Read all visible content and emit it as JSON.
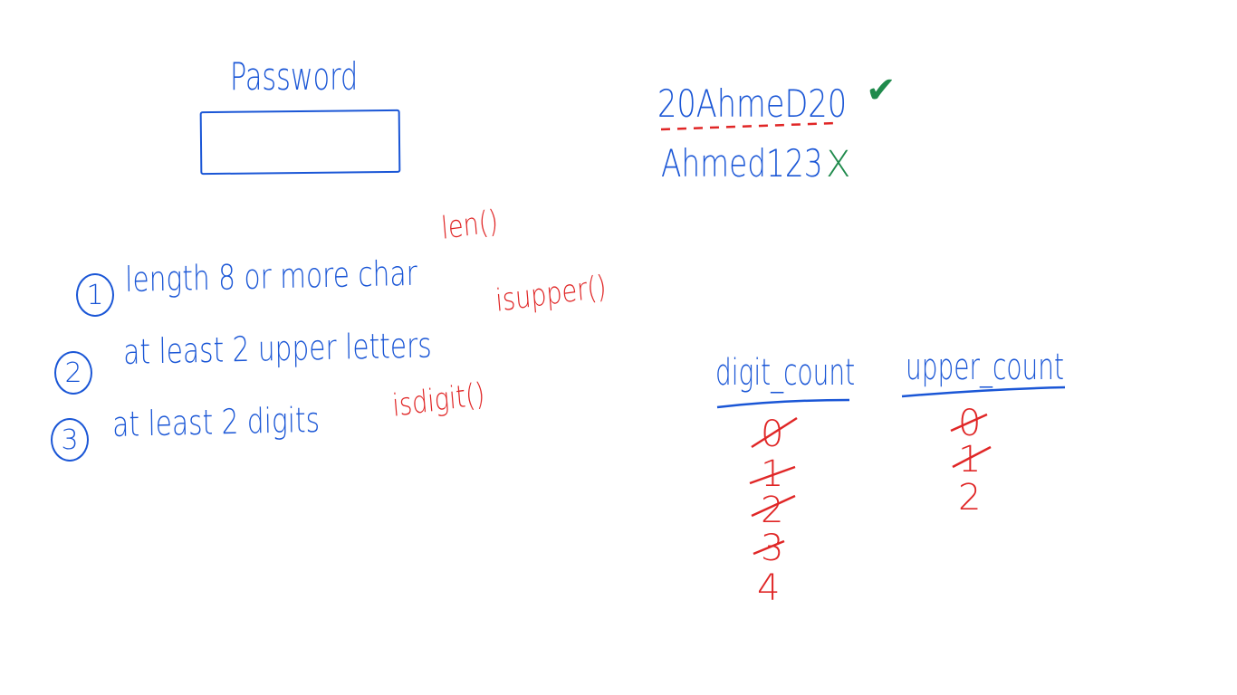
{
  "form": {
    "label": "Password",
    "input_value": ""
  },
  "rules": [
    {
      "number": "1",
      "text": "length 8 or more char"
    },
    {
      "number": "2",
      "text": "at least 2 upper letters"
    },
    {
      "number": "3",
      "text": "at least 2 digits"
    }
  ],
  "functions": {
    "length": "len()",
    "upper": "isupper()",
    "digit": "isdigit()"
  },
  "examples": [
    {
      "password": "20AhmeD20",
      "mark": "✔",
      "mark_color": "#1f8a4c"
    },
    {
      "password": "Ahmed123",
      "mark": "X",
      "mark_color": "#1f8a4c"
    }
  ],
  "counters": {
    "digit": {
      "header": "digit_count",
      "values": [
        "0",
        "1",
        "2",
        "3",
        "4"
      ]
    },
    "upper": {
      "header": "upper_count",
      "values": [
        "0",
        "1",
        "2"
      ]
    }
  },
  "colors": {
    "ink_blue": "#1a56d6",
    "ink_red": "#e02626",
    "ink_green": "#1f8a4c"
  }
}
